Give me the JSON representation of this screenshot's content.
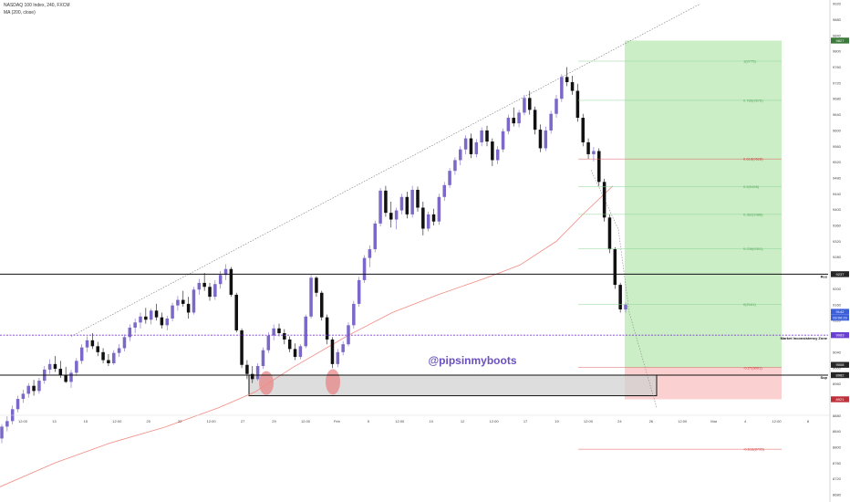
{
  "header": {
    "symbol_line": "NASDAQ 100 Index, 240, FXCM",
    "indicator_line": "MA (200, close)"
  },
  "watermark": "@pipsinmyboots",
  "colors": {
    "candle_up": "#7b68c9",
    "candle_down": "#111111",
    "ma_line": "#f28b82",
    "dotted_line": "#7b3fd6",
    "profit_zone": "#cbeec6",
    "loss_zone": "#fbd0d0",
    "fib_line": "#8fd49a",
    "fib_label": "#55a85c",
    "fib_red_line": "#e35a5a",
    "fib_red_label": "#d33030",
    "demand_zone": "#d2d2d2",
    "price_tag_dark": "#262626",
    "price_tag_blue": "#3a5fd9",
    "price_tag_purple": "#6b3fd4",
    "price_tag_red": "#c0303a",
    "price_tag_green": "#3b7a3b",
    "watermark": "#6a4fc0"
  },
  "chart_data": {
    "type": "candlestick",
    "price_axis": {
      "range": [
        8680,
        9920
      ],
      "ticks": [
        8680,
        8720,
        8760,
        8800,
        8840,
        8880,
        8920,
        8960,
        9000,
        9040,
        9080,
        9120,
        9160,
        9200,
        9240,
        9280,
        9320,
        9360,
        9400,
        9440,
        9480,
        9520,
        9560,
        9600,
        9640,
        9680,
        9720,
        9760,
        9800,
        9840,
        9880,
        9920
      ]
    },
    "time_axis": {
      "ticks": [
        "12:00",
        "13",
        "15",
        "12:00",
        "20",
        "22",
        "12:00",
        "27",
        "29",
        "12:00",
        "Feb",
        "5",
        "12:00",
        "10",
        "12",
        "12:00",
        "17",
        "19",
        "12:00",
        "24",
        "26",
        "12:00",
        "Mar",
        "4",
        "12:00",
        "8"
      ]
    },
    "horizontal_levels": [
      {
        "name": "Res",
        "value": 9237
      },
      {
        "name": "Market Inconsistency Zone",
        "value": 9083
      },
      {
        "name": "Sup",
        "value": 8982
      }
    ],
    "fibonacci": [
      {
        "ratio": "1(9775)",
        "value": 9775
      },
      {
        "ratio": "0.786(9676)",
        "value": 9676
      },
      {
        "ratio": "0.618(9528)",
        "value": 9528
      },
      {
        "ratio": "0.5(9458)",
        "value": 9458
      },
      {
        "ratio": "0.382(9388)",
        "value": 9388
      },
      {
        "ratio": "0.236(9301)",
        "value": 9301
      },
      {
        "ratio": "0(9161)",
        "value": 9161
      },
      {
        "ratio": "-0.27(9001)",
        "value": 9001
      },
      {
        "ratio": "-0.618(8795)",
        "value": 8795
      }
    ],
    "price_tags": [
      {
        "label": "9827",
        "value": 9827,
        "color": "green"
      },
      {
        "label": "9237",
        "value": 9237,
        "color": "dark"
      },
      {
        "label": "9142",
        "value": 9142,
        "color": "blue"
      },
      {
        "label": "03:00:23",
        "value": 9127,
        "color": "blue"
      },
      {
        "label": "9083",
        "value": 9083,
        "color": "purple"
      },
      {
        "label": "9008",
        "value": 9008,
        "color": "dark"
      },
      {
        "label": "8982",
        "value": 8982,
        "color": "dark"
      },
      {
        "label": "8921",
        "value": 8921,
        "color": "red"
      }
    ],
    "position": {
      "entry": 9001,
      "target": 9827,
      "stop": 8921
    },
    "demand_zone": {
      "top": 8982,
      "bottom": 8930
    },
    "rising_trendline": {
      "from": 9080,
      "to": 9920
    },
    "candles": [
      [
        8822,
        8858,
        8810,
        8852
      ],
      [
        8852,
        8878,
        8840,
        8866
      ],
      [
        8866,
        8905,
        8858,
        8896
      ],
      [
        8896,
        8930,
        8888,
        8922
      ],
      [
        8922,
        8945,
        8912,
        8935
      ],
      [
        8935,
        8962,
        8925,
        8955
      ],
      [
        8955,
        8970,
        8930,
        8942
      ],
      [
        8942,
        8975,
        8935,
        8968
      ],
      [
        8968,
        9005,
        8960,
        8996
      ],
      [
        8996,
        9022,
        8985,
        9010
      ],
      [
        9010,
        9030,
        8990,
        8998
      ],
      [
        8998,
        9018,
        8975,
        8982
      ],
      [
        8982,
        9003,
        8962,
        8965
      ],
      [
        8965,
        8995,
        8950,
        8988
      ],
      [
        8988,
        9025,
        8980,
        9018
      ],
      [
        9018,
        9060,
        9010,
        9052
      ],
      [
        9052,
        9080,
        9040,
        9070
      ],
      [
        9070,
        9088,
        9048,
        9055
      ],
      [
        9055,
        9066,
        9030,
        9040
      ],
      [
        9040,
        9050,
        9012,
        9020
      ],
      [
        9020,
        9035,
        9005,
        9012
      ],
      [
        9012,
        9045,
        9008,
        9038
      ],
      [
        9038,
        9060,
        9028,
        9050
      ],
      [
        9050,
        9085,
        9042,
        9078
      ],
      [
        9078,
        9110,
        9068,
        9102
      ],
      [
        9102,
        9125,
        9088,
        9115
      ],
      [
        9115,
        9140,
        9100,
        9130
      ],
      [
        9130,
        9152,
        9112,
        9122
      ],
      [
        9122,
        9150,
        9110,
        9145
      ],
      [
        9145,
        9162,
        9120,
        9128
      ],
      [
        9128,
        9140,
        9100,
        9108
      ],
      [
        9108,
        9132,
        9095,
        9125
      ],
      [
        9125,
        9165,
        9118,
        9158
      ],
      [
        9158,
        9182,
        9145,
        9172
      ],
      [
        9172,
        9195,
        9155,
        9162
      ],
      [
        9162,
        9180,
        9125,
        9140
      ],
      [
        9140,
        9205,
        9135,
        9198
      ],
      [
        9198,
        9225,
        9185,
        9215
      ],
      [
        9215,
        9240,
        9195,
        9205
      ],
      [
        9205,
        9215,
        9170,
        9180
      ],
      [
        9180,
        9222,
        9172,
        9212
      ],
      [
        9212,
        9245,
        9200,
        9235
      ],
      [
        9235,
        9262,
        9222,
        9250
      ],
      [
        9250,
        9255,
        9180,
        9185
      ],
      [
        9185,
        9190,
        9090,
        9095
      ],
      [
        9095,
        9100,
        9000,
        9008
      ],
      [
        9008,
        9020,
        8972,
        8985
      ],
      [
        8985,
        9005,
        8962,
        8972
      ],
      [
        8972,
        9012,
        8968,
        9005
      ],
      [
        9005,
        9052,
        8998,
        9045
      ],
      [
        9045,
        9090,
        9038,
        9082
      ],
      [
        9082,
        9110,
        9070,
        9100
      ],
      [
        9100,
        9112,
        9080,
        9088
      ],
      [
        9088,
        9098,
        9060,
        9072
      ],
      [
        9072,
        9080,
        9040,
        9048
      ],
      [
        9048,
        9062,
        9020,
        9028
      ],
      [
        9028,
        9060,
        9022,
        9055
      ],
      [
        9055,
        9135,
        9050,
        9130
      ],
      [
        9130,
        9235,
        9125,
        9228
      ],
      [
        9228,
        9232,
        9180,
        9190
      ],
      [
        9190,
        9195,
        9120,
        9128
      ],
      [
        9128,
        9135,
        9060,
        9072
      ],
      [
        9072,
        9078,
        9000,
        9010
      ],
      [
        9010,
        9048,
        9002,
        9040
      ],
      [
        9040,
        9068,
        9032,
        9060
      ],
      [
        9060,
        9115,
        9055,
        9108
      ],
      [
        9108,
        9170,
        9100,
        9162
      ],
      [
        9162,
        9230,
        9155,
        9222
      ],
      [
        9222,
        9285,
        9215,
        9278
      ],
      [
        9278,
        9310,
        9255,
        9300
      ],
      [
        9300,
        9372,
        9292,
        9365
      ],
      [
        9365,
        9455,
        9358,
        9448
      ],
      [
        9448,
        9460,
        9382,
        9392
      ],
      [
        9392,
        9420,
        9355,
        9375
      ],
      [
        9375,
        9405,
        9350,
        9398
      ],
      [
        9398,
        9440,
        9388,
        9432
      ],
      [
        9432,
        9445,
        9378,
        9388
      ],
      [
        9388,
        9460,
        9380,
        9450
      ],
      [
        9450,
        9458,
        9395,
        9405
      ],
      [
        9405,
        9420,
        9335,
        9352
      ],
      [
        9352,
        9395,
        9345,
        9388
      ],
      [
        9388,
        9402,
        9360,
        9370
      ],
      [
        9370,
        9440,
        9362,
        9432
      ],
      [
        9432,
        9470,
        9422,
        9462
      ],
      [
        9462,
        9505,
        9455,
        9498
      ],
      [
        9498,
        9532,
        9488,
        9525
      ],
      [
        9525,
        9560,
        9512,
        9552
      ],
      [
        9552,
        9588,
        9540,
        9580
      ],
      [
        9580,
        9592,
        9530,
        9540
      ],
      [
        9540,
        9578,
        9532,
        9570
      ],
      [
        9570,
        9608,
        9560,
        9600
      ],
      [
        9600,
        9612,
        9560,
        9572
      ],
      [
        9572,
        9580,
        9510,
        9525
      ],
      [
        9525,
        9560,
        9515,
        9552
      ],
      [
        9552,
        9605,
        9545,
        9598
      ],
      [
        9598,
        9640,
        9590,
        9632
      ],
      [
        9632,
        9658,
        9610,
        9618
      ],
      [
        9618,
        9652,
        9608,
        9645
      ],
      [
        9645,
        9690,
        9638,
        9682
      ],
      [
        9682,
        9700,
        9640,
        9652
      ],
      [
        9652,
        9660,
        9590,
        9602
      ],
      [
        9602,
        9615,
        9545,
        9555
      ],
      [
        9555,
        9610,
        9548,
        9600
      ],
      [
        9600,
        9650,
        9592,
        9642
      ],
      [
        9642,
        9690,
        9632,
        9680
      ],
      [
        9680,
        9742,
        9672,
        9735
      ],
      [
        9735,
        9760,
        9712,
        9722
      ],
      [
        9722,
        9738,
        9690,
        9700
      ],
      [
        9700,
        9718,
        9622,
        9632
      ],
      [
        9632,
        9642,
        9560,
        9570
      ],
      [
        9570,
        9580,
        9528,
        9540
      ],
      [
        9540,
        9558,
        9522,
        9548
      ],
      [
        9548,
        9555,
        9460,
        9470
      ],
      [
        9470,
        9478,
        9370,
        9380
      ],
      [
        9380,
        9388,
        9290,
        9300
      ],
      [
        9300,
        9305,
        9200,
        9210
      ],
      [
        9210,
        9215,
        9140,
        9148
      ],
      [
        9148,
        9165,
        9140,
        9160
      ]
    ]
  }
}
